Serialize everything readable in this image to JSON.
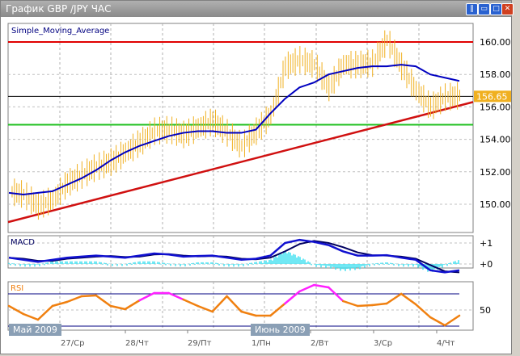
{
  "window": {
    "title": "График GBP /JPY  ЧАС",
    "buttons": [
      "tile",
      "minimize",
      "maximize",
      "close"
    ]
  },
  "main_pane": {
    "indicator_label": "Simple_Moving_Average",
    "current_price": "156.65"
  },
  "macd_pane": {
    "label": "MACD"
  },
  "rsi_pane": {
    "label": "RSI"
  },
  "month_tags": [
    "Май 2009",
    "Июнь 2009"
  ],
  "colors": {
    "price": "#f0b020",
    "sma": "#0000c0",
    "resistance": "#e00000",
    "support": "#20c020",
    "trend": "#d01010",
    "macd_main": "#1010d0",
    "macd_signal": "#000060",
    "macd_hist": "#40e0f0",
    "rsi": "#f08010",
    "rsi_overbought": "#ff20ff"
  },
  "chart_data": [
    {
      "type": "line",
      "title": "Simple_Moving_Average",
      "y_ticks": [
        "160.00",
        "158.00",
        "156.00",
        "154.00",
        "152.00",
        "150.00"
      ],
      "ylim": [
        149,
        161
      ],
      "x_ticks": [
        "27/Ср",
        "28/Чт",
        "29/Пт",
        "1/Пн",
        "2/Вт",
        "3/Ср",
        "4/Чт"
      ],
      "price": [
        150.8,
        150.6,
        149.9,
        150.3,
        151.3,
        151.8,
        152.3,
        152.6,
        153.2,
        153.8,
        154.5,
        154.6,
        154.3,
        154.7,
        155.1,
        154.4,
        153.6,
        154.5,
        155.5,
        158.5,
        158.9,
        158.6,
        157.2,
        158.6,
        158.6,
        158.7,
        160.1,
        158.5,
        157.0,
        156.0,
        156.6,
        156.7
      ],
      "sma": [
        150.7,
        150.6,
        150.7,
        150.8,
        151.2,
        151.6,
        152.1,
        152.7,
        153.2,
        153.6,
        153.9,
        154.2,
        154.4,
        154.5,
        154.5,
        154.4,
        154.4,
        154.6,
        155.6,
        156.5,
        157.2,
        157.5,
        158.0,
        158.2,
        158.4,
        158.5,
        158.5,
        158.6,
        158.5,
        158.0,
        157.8,
        157.6
      ],
      "horizontal_lines": [
        {
          "value": 160.0,
          "color": "red"
        },
        {
          "value": 156.65,
          "color": "black"
        },
        {
          "value": 154.9,
          "color": "green"
        }
      ],
      "trendline": [
        148.9,
        156.3
      ]
    },
    {
      "type": "line",
      "title": "MACD",
      "y_ticks": [
        "+1",
        "+0"
      ],
      "ylim": [
        -0.6,
        1.3
      ],
      "main": [
        0.3,
        0.2,
        0.1,
        0.2,
        0.3,
        0.35,
        0.4,
        0.35,
        0.3,
        0.4,
        0.5,
        0.45,
        0.35,
        0.38,
        0.4,
        0.3,
        0.2,
        0.25,
        0.4,
        1.0,
        1.15,
        1.05,
        0.9,
        0.6,
        0.4,
        0.4,
        0.42,
        0.3,
        0.2,
        -0.3,
        -0.4,
        -0.3
      ],
      "signal": [
        0.3,
        0.25,
        0.15,
        0.15,
        0.25,
        0.3,
        0.35,
        0.38,
        0.33,
        0.35,
        0.45,
        0.47,
        0.4,
        0.36,
        0.38,
        0.35,
        0.25,
        0.22,
        0.3,
        0.6,
        0.95,
        1.1,
        1.0,
        0.8,
        0.55,
        0.42,
        0.4,
        0.35,
        0.25,
        -0.05,
        -0.35,
        -0.4
      ]
    },
    {
      "type": "line",
      "title": "RSI",
      "y_ticks": [
        "50"
      ],
      "levels": [
        70,
        30
      ],
      "ylim": [
        20,
        85
      ],
      "values": [
        55,
        45,
        38,
        55,
        60,
        67,
        68,
        55,
        51,
        62,
        71,
        71,
        63,
        55,
        48,
        67,
        48,
        43,
        43,
        58,
        73,
        81,
        78,
        61,
        55,
        56,
        58,
        70,
        57,
        41,
        31,
        43
      ]
    }
  ]
}
